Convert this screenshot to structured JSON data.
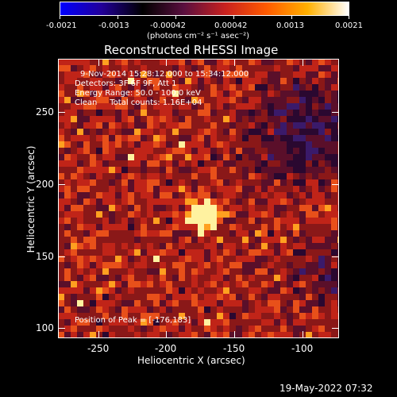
{
  "colorbar": {
    "tick_labels": [
      "-0.0021",
      "-0.0013",
      "-0.00042",
      "0.00042",
      "0.0013",
      "0.0021"
    ],
    "units_label": "(photons cm⁻² s⁻¹ asec⁻²)",
    "stops": [
      "#0000ff",
      "#220099",
      "#000000",
      "#5a0f3f",
      "#c8211f",
      "#ff5a00",
      "#ffb000",
      "#ffffff"
    ]
  },
  "plot": {
    "title": "Reconstructed RHESSI Image",
    "xlabel": "Heliocentric X (arcsec)",
    "ylabel": "Heliocentric Y (arcsec)",
    "x_ticks": [
      "-250",
      "-200",
      "-150",
      "-100"
    ],
    "y_ticks": [
      "100",
      "150",
      "200",
      "250"
    ],
    "xlim": [
      -276,
      -80
    ],
    "ylim": [
      95,
      290
    ]
  },
  "info": {
    "line1": "9-Nov-2014 15:28:12.000 to 15:34:12.000",
    "line2": "Detectors: 3F 6F 9F, Att 1",
    "line3": "Energy Range: 50.0 - 100.0 keV",
    "line4": "Clean     Total counts: 1.16E+04",
    "peak": "Position of Peak = [-176,183]"
  },
  "peak_position": [
    -176,
    183
  ],
  "timestamp": "19-May-2022 07:32"
}
